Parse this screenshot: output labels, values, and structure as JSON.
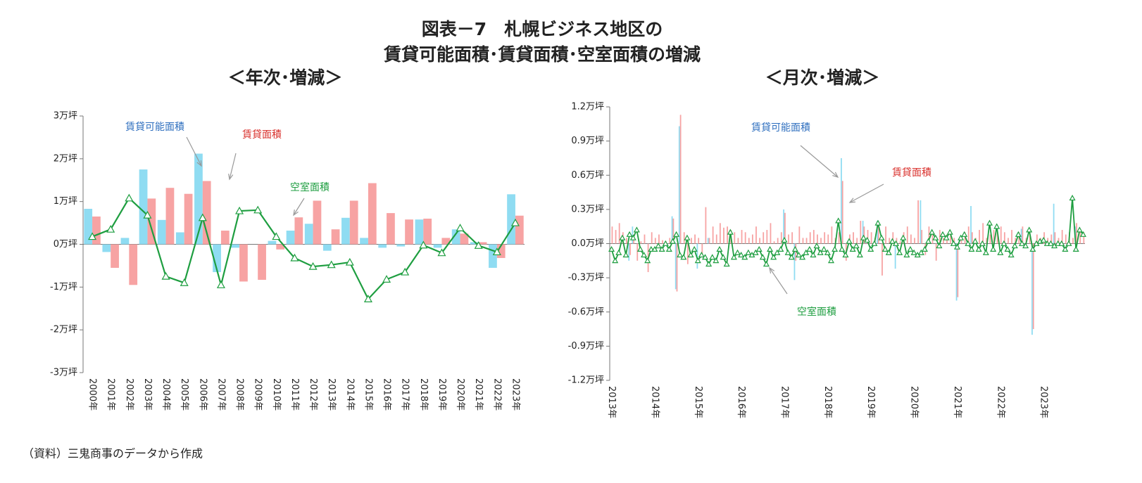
{
  "title": [
    "図表－7　札幌ビジネス地区の",
    "賃貸可能面積･賃貸面積･空室面積の増減"
  ],
  "source": "（資料）三鬼商事のデータから作成",
  "chart_data": [
    {
      "type": "bar",
      "subtitle": "＜年次･増減＞",
      "categories": [
        "2000年",
        "2001年",
        "2002年",
        "2003年",
        "2004年",
        "2005年",
        "2006年",
        "2007年",
        "2008年",
        "2009年",
        "2010年",
        "2011年",
        "2012年",
        "2013年",
        "2014年",
        "2015年",
        "2016年",
        "2017年",
        "2018年",
        "2019年",
        "2020年",
        "2021年",
        "2022年",
        "2023年"
      ],
      "series": [
        {
          "name": "賃貸可能面積",
          "type": "bar",
          "color": "#8fdcf2",
          "values": [
            0.83,
            -0.18,
            0.15,
            1.75,
            0.57,
            0.28,
            2.12,
            -0.65,
            -0.08,
            0.0,
            0.08,
            0.32,
            0.48,
            -0.15,
            0.62,
            0.15,
            -0.08,
            -0.05,
            0.58,
            -0.08,
            0.35,
            0.05,
            -0.55,
            1.17
          ]
        },
        {
          "name": "賃貸面積",
          "type": "bar",
          "color": "#f7a3a3",
          "values": [
            0.65,
            -0.55,
            -0.95,
            1.07,
            1.32,
            1.18,
            1.48,
            0.32,
            -0.87,
            -0.83,
            -0.12,
            0.63,
            1.02,
            0.35,
            1.02,
            1.43,
            0.73,
            0.58,
            0.6,
            0.15,
            0.25,
            0.05,
            -0.32,
            0.67
          ]
        },
        {
          "name": "空室面積",
          "type": "line",
          "color": "#1e9e40",
          "values": [
            0.18,
            0.35,
            1.08,
            0.68,
            -0.75,
            -0.9,
            0.62,
            -0.95,
            0.78,
            0.8,
            0.18,
            -0.32,
            -0.52,
            -0.48,
            -0.42,
            -1.28,
            -0.82,
            -0.65,
            -0.02,
            -0.2,
            0.38,
            -0.03,
            -0.18,
            0.5
          ]
        }
      ],
      "ylim": [
        -3,
        3
      ],
      "yticks": [
        {
          "value": 3,
          "label": "3万坪"
        },
        {
          "value": 2,
          "label": "2万坪"
        },
        {
          "value": 1,
          "label": "1万坪"
        },
        {
          "value": 0,
          "label": "0万坪"
        },
        {
          "value": -1,
          "label": "-1万坪"
        },
        {
          "value": -2,
          "label": "-2万坪"
        },
        {
          "value": -3,
          "label": "-3万坪"
        }
      ],
      "annotations": [
        {
          "text": "賃貸可能面積",
          "color": "#2f6fbf"
        },
        {
          "text": "賃貸面積",
          "color": "#d9302c"
        },
        {
          "text": "空室面積",
          "color": "#1e9e40"
        }
      ]
    },
    {
      "type": "bar",
      "subtitle": "＜月次･増減＞",
      "categories": [
        "2013年",
        null,
        null,
        null,
        null,
        null,
        null,
        null,
        null,
        null,
        null,
        null,
        "2014年",
        null,
        null,
        null,
        null,
        null,
        null,
        null,
        null,
        null,
        null,
        null,
        "2015年",
        null,
        null,
        null,
        null,
        null,
        null,
        null,
        null,
        null,
        null,
        null,
        "2016年",
        null,
        null,
        null,
        null,
        null,
        null,
        null,
        null,
        null,
        null,
        null,
        "2017年",
        null,
        null,
        null,
        null,
        null,
        null,
        null,
        null,
        null,
        null,
        null,
        "2018年",
        null,
        null,
        null,
        null,
        null,
        null,
        null,
        null,
        null,
        null,
        null,
        "2019年",
        null,
        null,
        null,
        null,
        null,
        null,
        null,
        null,
        null,
        null,
        null,
        "2020年",
        null,
        null,
        null,
        null,
        null,
        null,
        null,
        null,
        null,
        null,
        null,
        "2021年",
        null,
        null,
        null,
        null,
        null,
        null,
        null,
        null,
        null,
        null,
        null,
        "2022年",
        null,
        null,
        null,
        null,
        null,
        null,
        null,
        null,
        null,
        null,
        null,
        "2023年",
        null,
        null,
        null,
        null,
        null,
        null,
        null,
        null,
        null,
        null,
        null
      ],
      "series": [
        {
          "name": "賃貸可能面積",
          "type": "bar",
          "color": "#8fdcf2",
          "values": [
            0,
            0,
            0,
            0,
            0,
            -0.15,
            0.15,
            0,
            0,
            0,
            0,
            0,
            0,
            0,
            0,
            0,
            0,
            0.24,
            -0.4,
            1.03,
            0,
            0,
            0,
            0,
            -0.22,
            0,
            0,
            0.05,
            0,
            0,
            0,
            0,
            0,
            0,
            0,
            0,
            0,
            0,
            0,
            0,
            0,
            0,
            0,
            0,
            0,
            0,
            0,
            0,
            0.3,
            0,
            0,
            -0.32,
            0,
            0,
            0,
            0,
            0,
            0,
            0,
            0,
            0,
            0,
            0,
            0,
            0.75,
            0,
            0,
            0,
            0,
            0,
            0.2,
            0,
            0,
            0,
            0.2,
            0,
            0,
            0,
            0,
            -0.22,
            0,
            0,
            0,
            0,
            0,
            0,
            0.38,
            0,
            0,
            0,
            0,
            0,
            0,
            0,
            0,
            0,
            -0.5,
            0,
            0,
            0,
            0.33,
            0,
            0,
            0,
            0,
            0,
            0,
            0,
            0,
            0,
            0,
            0,
            0,
            0,
            0.13,
            0,
            0,
            -0.8,
            0,
            0,
            0,
            0,
            0,
            0.35,
            0,
            0,
            0,
            0,
            0,
            0.15,
            0,
            0
          ]
        },
        {
          "name": "賃貸面積",
          "type": "bar",
          "color": "#f7a3a3",
          "values": [
            0.15,
            0.12,
            0.18,
            0.1,
            0.05,
            -0.1,
            0.08,
            -0.15,
            0.02,
            0.08,
            -0.25,
            0.1,
            0.05,
            0.08,
            0.03,
            0.02,
            0.05,
            0.22,
            -0.42,
            1.13,
            0.1,
            -0.18,
            0.05,
            0.08,
            0.05,
            -0.1,
            0.32,
            0.05,
            0.15,
            0.08,
            0.18,
            0.14,
            0.15,
            0.12,
            0.1,
            0.05,
            0.12,
            0.1,
            0.05,
            0.08,
            0.15,
            0.05,
            0.1,
            0.12,
            0.18,
            0.02,
            0.05,
            0.1,
            0.27,
            0.08,
            0.1,
            -0.15,
            0.15,
            0.05,
            0.05,
            0.1,
            0.12,
            0.08,
            0.05,
            0.1,
            0.08,
            0.15,
            0.05,
            0.1,
            0.55,
            -0.15,
            0.08,
            0.1,
            0.05,
            0.2,
            0.15,
            0.12,
            0.1,
            0.05,
            0.18,
            -0.28,
            0.15,
            0.05,
            0.1,
            0.05,
            0.02,
            0.1,
            0.15,
            0.08,
            0.05,
            0.38,
            0.12,
            -0.1,
            0.15,
            0.1,
            -0.15,
            0.12,
            0.05,
            0.08,
            0.1,
            0.05,
            -0.47,
            0.05,
            0.1,
            0.15,
            0.1,
            0.05,
            0.12,
            0.18,
            0.05,
            0.08,
            0.12,
            0.1,
            0.15,
            0.1,
            0.05,
            0.12,
            0.05,
            0.1,
            0.15,
            0.05,
            0.1,
            -0.75,
            0.08,
            0.05,
            0.1,
            0.05,
            0.08,
            0.1,
            0.05,
            0.12,
            0.08,
            0.1,
            0.05,
            0.18,
            0.12,
            0.1
          ]
        },
        {
          "name": "空室面積",
          "type": "line",
          "color": "#1e9e40",
          "values": [
            -0.05,
            -0.15,
            -0.08,
            0.05,
            -0.1,
            0.08,
            0.05,
            0.12,
            -0.05,
            -0.1,
            -0.15,
            -0.05,
            -0.05,
            -0.02,
            -0.05,
            0.0,
            -0.05,
            0.02,
            0.08,
            -0.1,
            -0.12,
            0.05,
            -0.1,
            -0.05,
            -0.15,
            -0.1,
            -0.12,
            -0.18,
            -0.12,
            -0.15,
            -0.05,
            -0.12,
            -0.18,
            0.1,
            -0.12,
            -0.08,
            -0.1,
            -0.12,
            -0.08,
            -0.1,
            -0.08,
            -0.05,
            -0.12,
            -0.18,
            -0.05,
            -0.12,
            -0.08,
            -0.05,
            0.03,
            -0.08,
            -0.12,
            -0.05,
            -0.1,
            -0.12,
            -0.08,
            -0.05,
            -0.1,
            -0.02,
            -0.08,
            -0.05,
            -0.08,
            -0.15,
            -0.05,
            0.2,
            -0.05,
            -0.1,
            0.02,
            -0.05,
            -0.02,
            -0.1,
            0.05,
            0.03,
            -0.05,
            0.0,
            0.18,
            0.05,
            -0.05,
            -0.08,
            0.02,
            0.0,
            -0.08,
            0.05,
            -0.1,
            -0.05,
            -0.08,
            -0.1,
            -0.08,
            -0.05,
            0.02,
            0.1,
            0.05,
            -0.02,
            0.08,
            0.05,
            0.1,
            0.0,
            -0.03,
            0.05,
            0.08,
            0.0,
            -0.05,
            0.02,
            -0.05,
            0.0,
            -0.08,
            0.18,
            -0.05,
            0.15,
            -0.08,
            0.0,
            -0.05,
            -0.1,
            -0.02,
            0.08,
            0.0,
            -0.02,
            0.12,
            -0.05,
            0.0,
            0.02,
            0.03,
            0.0,
            0.0,
            -0.02,
            0.0,
            0.0,
            -0.05,
            0.0,
            0.4,
            -0.05,
            0.12,
            0.08
          ]
        }
      ],
      "ylim": [
        -1.2,
        1.2
      ],
      "yticks": [
        {
          "value": 1.2,
          "label": "1.2万坪"
        },
        {
          "value": 0.9,
          "label": "0.9万坪"
        },
        {
          "value": 0.6,
          "label": "0.6万坪"
        },
        {
          "value": 0.3,
          "label": "0.3万坪"
        },
        {
          "value": 0,
          "label": "0.0万坪"
        },
        {
          "value": -0.3,
          "label": "-0.3万坪"
        },
        {
          "value": -0.6,
          "label": "-0.6万坪"
        },
        {
          "value": -0.9,
          "label": "-0.9万坪"
        },
        {
          "value": -1.2,
          "label": "-1.2万坪"
        }
      ],
      "annotations": [
        {
          "text": "賃貸可能面積",
          "color": "#2f6fbf"
        },
        {
          "text": "賃貸面積",
          "color": "#d9302c"
        },
        {
          "text": "空室面積",
          "color": "#1e9e40"
        }
      ]
    }
  ]
}
